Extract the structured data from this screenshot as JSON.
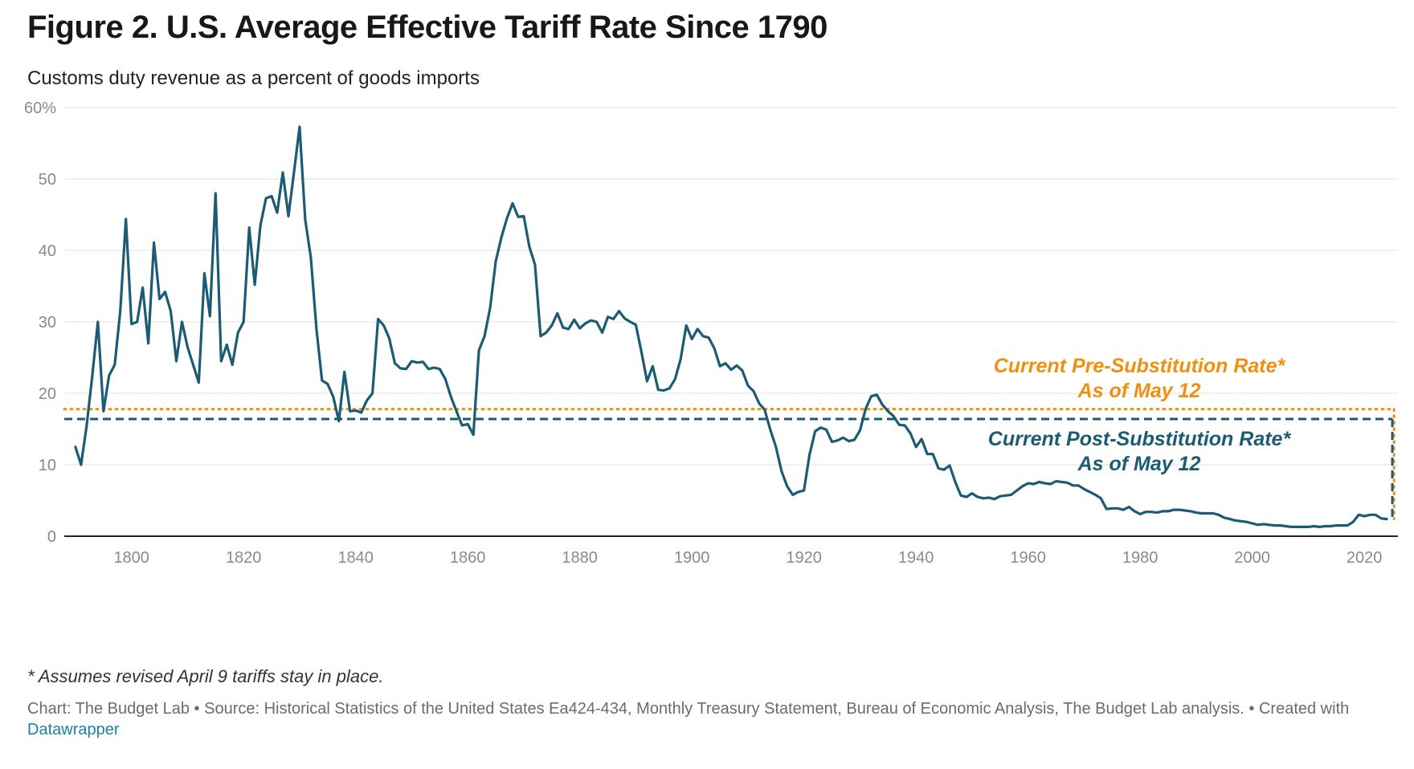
{
  "title": "Figure 2. U.S. Average Effective Tariff Rate Since 1790",
  "subtitle": "Customs duty revenue as a percent of goods imports",
  "note": "* Assumes revised April 9 tariffs stay in place.",
  "footer": {
    "text": "Chart: The Budget Lab • Source: Historical Statistics of the United States Ea424-434, Monthly Treasury Statement, Bureau of Economic Analysis, The Budget Lab analysis. • Created with ",
    "link": "Datawrapper"
  },
  "colors": {
    "series": "#1b5b73",
    "pre_substitution": "#f0900e",
    "post_substitution": "#1b5b73",
    "grid": "#e1e1e1",
    "axis": "#222222",
    "link": "#1d81a2"
  },
  "chart_data": {
    "type": "line",
    "xlim": [
      1788,
      2026
    ],
    "ylim": [
      0,
      60
    ],
    "x_ticks": [
      1800,
      1820,
      1840,
      1860,
      1880,
      1900,
      1920,
      1940,
      1960,
      1980,
      2000,
      2020
    ],
    "y_ticks": [
      0,
      10,
      20,
      30,
      40,
      50,
      60
    ],
    "y_tick_labels": [
      "0",
      "10",
      "20",
      "30",
      "40",
      "50",
      "60%"
    ],
    "grid": "horizontal",
    "series": [
      {
        "values": [
          [
            1790,
            12.5
          ],
          [
            1791,
            10.0
          ],
          [
            1792,
            15.5
          ],
          [
            1793,
            22.5
          ],
          [
            1794,
            30.0
          ],
          [
            1795,
            17.5
          ],
          [
            1796,
            22.5
          ],
          [
            1797,
            24.0
          ],
          [
            1798,
            31.5
          ],
          [
            1799,
            44.4
          ],
          [
            1800,
            29.7
          ],
          [
            1801,
            30.0
          ],
          [
            1802,
            34.8
          ],
          [
            1803,
            27.0
          ],
          [
            1804,
            41.1
          ],
          [
            1805,
            33.2
          ],
          [
            1806,
            34.2
          ],
          [
            1807,
            31.5
          ],
          [
            1808,
            24.5
          ],
          [
            1809,
            30.0
          ],
          [
            1810,
            26.5
          ],
          [
            1811,
            24.0
          ],
          [
            1812,
            21.5
          ],
          [
            1813,
            36.8
          ],
          [
            1814,
            30.8
          ],
          [
            1815,
            48.0
          ],
          [
            1816,
            24.5
          ],
          [
            1817,
            26.8
          ],
          [
            1818,
            24.0
          ],
          [
            1819,
            28.5
          ],
          [
            1820,
            30.0
          ],
          [
            1821,
            43.2
          ],
          [
            1822,
            35.2
          ],
          [
            1823,
            43.5
          ],
          [
            1824,
            47.3
          ],
          [
            1825,
            47.6
          ],
          [
            1826,
            45.3
          ],
          [
            1827,
            50.9
          ],
          [
            1828,
            44.8
          ],
          [
            1829,
            51.0
          ],
          [
            1830,
            57.3
          ],
          [
            1831,
            44.3
          ],
          [
            1832,
            39.0
          ],
          [
            1833,
            29.0
          ],
          [
            1834,
            21.8
          ],
          [
            1835,
            21.3
          ],
          [
            1836,
            19.5
          ],
          [
            1837,
            16.1
          ],
          [
            1838,
            23.0
          ],
          [
            1839,
            17.5
          ],
          [
            1840,
            17.6
          ],
          [
            1841,
            17.3
          ],
          [
            1842,
            19.0
          ],
          [
            1843,
            20.0
          ],
          [
            1844,
            30.4
          ],
          [
            1845,
            29.5
          ],
          [
            1846,
            27.7
          ],
          [
            1847,
            24.2
          ],
          [
            1848,
            23.5
          ],
          [
            1849,
            23.4
          ],
          [
            1850,
            24.5
          ],
          [
            1851,
            24.3
          ],
          [
            1852,
            24.4
          ],
          [
            1853,
            23.4
          ],
          [
            1854,
            23.6
          ],
          [
            1855,
            23.4
          ],
          [
            1856,
            22.0
          ],
          [
            1857,
            19.5
          ],
          [
            1858,
            17.5
          ],
          [
            1859,
            15.5
          ],
          [
            1860,
            15.7
          ],
          [
            1861,
            14.2
          ],
          [
            1862,
            26.0
          ],
          [
            1863,
            28.0
          ],
          [
            1864,
            32.0
          ],
          [
            1865,
            38.5
          ],
          [
            1866,
            41.8
          ],
          [
            1867,
            44.5
          ],
          [
            1868,
            46.6
          ],
          [
            1869,
            44.7
          ],
          [
            1870,
            44.8
          ],
          [
            1871,
            40.5
          ],
          [
            1872,
            38.0
          ],
          [
            1873,
            28.0
          ],
          [
            1874,
            28.5
          ],
          [
            1875,
            29.5
          ],
          [
            1876,
            31.2
          ],
          [
            1877,
            29.2
          ],
          [
            1878,
            29.0
          ],
          [
            1879,
            30.3
          ],
          [
            1880,
            29.1
          ],
          [
            1881,
            29.8
          ],
          [
            1882,
            30.2
          ],
          [
            1883,
            30.0
          ],
          [
            1884,
            28.5
          ],
          [
            1885,
            30.7
          ],
          [
            1886,
            30.4
          ],
          [
            1887,
            31.5
          ],
          [
            1888,
            30.5
          ],
          [
            1889,
            30.0
          ],
          [
            1890,
            29.6
          ],
          [
            1891,
            25.8
          ],
          [
            1892,
            21.7
          ],
          [
            1893,
            23.8
          ],
          [
            1894,
            20.5
          ],
          [
            1895,
            20.4
          ],
          [
            1896,
            20.7
          ],
          [
            1897,
            22.0
          ],
          [
            1898,
            24.8
          ],
          [
            1899,
            29.5
          ],
          [
            1900,
            27.6
          ],
          [
            1901,
            29.0
          ],
          [
            1902,
            28.0
          ],
          [
            1903,
            27.8
          ],
          [
            1904,
            26.3
          ],
          [
            1905,
            23.8
          ],
          [
            1906,
            24.2
          ],
          [
            1907,
            23.3
          ],
          [
            1908,
            23.9
          ],
          [
            1909,
            23.2
          ],
          [
            1910,
            21.1
          ],
          [
            1911,
            20.3
          ],
          [
            1912,
            18.6
          ],
          [
            1913,
            17.7
          ],
          [
            1914,
            14.9
          ],
          [
            1915,
            12.5
          ],
          [
            1916,
            9.1
          ],
          [
            1917,
            7.0
          ],
          [
            1918,
            5.8
          ],
          [
            1919,
            6.2
          ],
          [
            1920,
            6.4
          ],
          [
            1921,
            11.4
          ],
          [
            1922,
            14.7
          ],
          [
            1923,
            15.2
          ],
          [
            1924,
            14.9
          ],
          [
            1925,
            13.2
          ],
          [
            1926,
            13.4
          ],
          [
            1927,
            13.8
          ],
          [
            1928,
            13.3
          ],
          [
            1929,
            13.5
          ],
          [
            1930,
            14.8
          ],
          [
            1931,
            17.8
          ],
          [
            1932,
            19.6
          ],
          [
            1933,
            19.8
          ],
          [
            1934,
            18.4
          ],
          [
            1935,
            17.5
          ],
          [
            1936,
            16.8
          ],
          [
            1937,
            15.6
          ],
          [
            1938,
            15.5
          ],
          [
            1939,
            14.4
          ],
          [
            1940,
            12.5
          ],
          [
            1941,
            13.6
          ],
          [
            1942,
            11.5
          ],
          [
            1943,
            11.5
          ],
          [
            1944,
            9.5
          ],
          [
            1945,
            9.3
          ],
          [
            1946,
            9.9
          ],
          [
            1947,
            7.6
          ],
          [
            1948,
            5.7
          ],
          [
            1949,
            5.5
          ],
          [
            1950,
            6.0
          ],
          [
            1951,
            5.5
          ],
          [
            1952,
            5.3
          ],
          [
            1953,
            5.4
          ],
          [
            1954,
            5.2
          ],
          [
            1955,
            5.6
          ],
          [
            1956,
            5.7
          ],
          [
            1957,
            5.8
          ],
          [
            1958,
            6.4
          ],
          [
            1959,
            7.0
          ],
          [
            1960,
            7.4
          ],
          [
            1961,
            7.3
          ],
          [
            1962,
            7.6
          ],
          [
            1963,
            7.4
          ],
          [
            1964,
            7.3
          ],
          [
            1965,
            7.7
          ],
          [
            1966,
            7.6
          ],
          [
            1967,
            7.5
          ],
          [
            1968,
            7.1
          ],
          [
            1969,
            7.1
          ],
          [
            1970,
            6.6
          ],
          [
            1971,
            6.2
          ],
          [
            1972,
            5.8
          ],
          [
            1973,
            5.3
          ],
          [
            1974,
            3.8
          ],
          [
            1975,
            3.9
          ],
          [
            1976,
            3.9
          ],
          [
            1977,
            3.7
          ],
          [
            1978,
            4.1
          ],
          [
            1979,
            3.5
          ],
          [
            1980,
            3.1
          ],
          [
            1981,
            3.4
          ],
          [
            1982,
            3.4
          ],
          [
            1983,
            3.3
          ],
          [
            1984,
            3.5
          ],
          [
            1985,
            3.5
          ],
          [
            1986,
            3.7
          ],
          [
            1987,
            3.7
          ],
          [
            1988,
            3.6
          ],
          [
            1989,
            3.5
          ],
          [
            1990,
            3.3
          ],
          [
            1991,
            3.2
          ],
          [
            1992,
            3.2
          ],
          [
            1993,
            3.2
          ],
          [
            1994,
            3.0
          ],
          [
            1995,
            2.6
          ],
          [
            1996,
            2.4
          ],
          [
            1997,
            2.2
          ],
          [
            1998,
            2.1
          ],
          [
            1999,
            2.0
          ],
          [
            2000,
            1.8
          ],
          [
            2001,
            1.6
          ],
          [
            2002,
            1.7
          ],
          [
            2003,
            1.6
          ],
          [
            2004,
            1.5
          ],
          [
            2005,
            1.5
          ],
          [
            2006,
            1.4
          ],
          [
            2007,
            1.3
          ],
          [
            2008,
            1.3
          ],
          [
            2009,
            1.3
          ],
          [
            2010,
            1.3
          ],
          [
            2011,
            1.4
          ],
          [
            2012,
            1.3
          ],
          [
            2013,
            1.4
          ],
          [
            2014,
            1.4
          ],
          [
            2015,
            1.5
          ],
          [
            2016,
            1.5
          ],
          [
            2017,
            1.5
          ],
          [
            2018,
            2.0
          ],
          [
            2019,
            3.0
          ],
          [
            2020,
            2.8
          ],
          [
            2021,
            3.0
          ],
          [
            2022,
            3.0
          ],
          [
            2023,
            2.5
          ],
          [
            2024,
            2.4
          ]
        ]
      }
    ],
    "reference_lines": [
      {
        "value": 17.8,
        "style": "dotted",
        "color": "#f0900e",
        "label_line1": "Current Pre-Substitution Rate*",
        "label_line2": "As of May 12",
        "connector_year": 2025.3
      },
      {
        "value": 16.4,
        "style": "dashed",
        "color": "#1b5b73",
        "label_line1": "Current Post-Substitution Rate*",
        "label_line2": "As of May 12",
        "connector_year": 2025.0
      }
    ]
  }
}
